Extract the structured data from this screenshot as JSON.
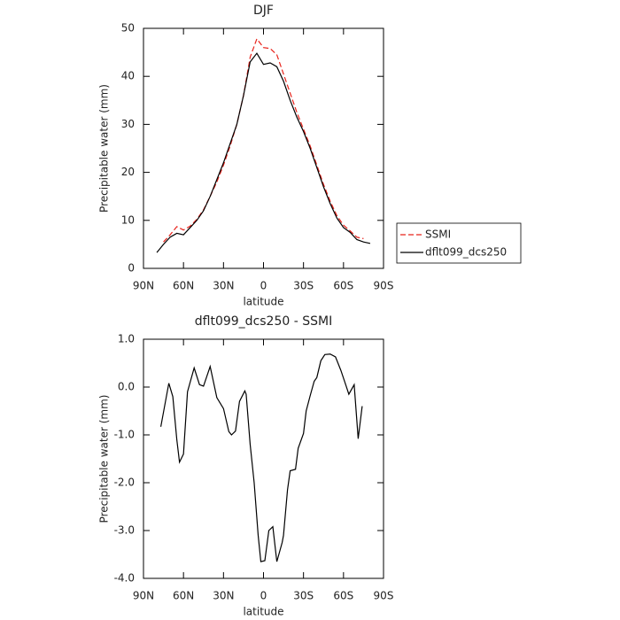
{
  "chart_data": [
    {
      "type": "line",
      "title": "DJF",
      "xlabel": "latitude",
      "ylabel": "Precipitable water (mm)",
      "xlim": [
        90,
        -90
      ],
      "xticks": [
        {
          "value": 90,
          "label": "90N"
        },
        {
          "value": 60,
          "label": "60N"
        },
        {
          "value": 30,
          "label": "30N"
        },
        0,
        {
          "value": -30,
          "label": "30S"
        },
        {
          "value": -60,
          "label": "60S"
        },
        {
          "value": -90,
          "label": "90S"
        }
      ],
      "ylim": [
        0,
        50
      ],
      "yticks": [
        0,
        10,
        20,
        30,
        40,
        50
      ],
      "legend": "right",
      "x": [
        80,
        75,
        70,
        65,
        60,
        55,
        50,
        45,
        40,
        35,
        30,
        25,
        20,
        15,
        10,
        5,
        0,
        -5,
        -10,
        -15,
        -20,
        -25,
        -30,
        -35,
        -40,
        -45,
        -50,
        -55,
        -60,
        -65,
        -70,
        -75,
        -80
      ],
      "series": [
        {
          "name": "SSMI",
          "color": "#e8231b",
          "dashed": true,
          "values": [
            null,
            5.5,
            7,
            8.7,
            8,
            8.8,
            10.2,
            12.2,
            15,
            18,
            21.5,
            25.5,
            30,
            36,
            44,
            47.8,
            46,
            45.8,
            44.5,
            40.5,
            36.5,
            32.5,
            29,
            25.5,
            21.5,
            17.5,
            14,
            11,
            9,
            7.8,
            6.5,
            6.2,
            null
          ]
        },
        {
          "name": "dflt099_dcs250",
          "color": "#000000",
          "dashed": false,
          "values": [
            3.3,
            5,
            6.5,
            7.3,
            7,
            8.5,
            10,
            12,
            15,
            18.5,
            22,
            26,
            30,
            36,
            43,
            44.8,
            42.5,
            42.8,
            42,
            39,
            35,
            31.5,
            28.5,
            25,
            21,
            17,
            13.5,
            10.5,
            8.5,
            7.5,
            6,
            5.5,
            5.2
          ]
        }
      ]
    },
    {
      "type": "line",
      "title": "dflt099_dcs250 - SSMI",
      "xlabel": "latitude",
      "ylabel": "Precipitable water (mm)",
      "xlim": [
        90,
        -90
      ],
      "xticks": [
        {
          "value": 90,
          "label": "90N"
        },
        {
          "value": 60,
          "label": "60N"
        },
        {
          "value": 30,
          "label": "30N"
        },
        0,
        {
          "value": -30,
          "label": "30S"
        },
        {
          "value": -60,
          "label": "60S"
        },
        {
          "value": -90,
          "label": "90S"
        }
      ],
      "ylim": [
        -4,
        1
      ],
      "yticks": [
        {
          "value": -4,
          "label": "-4.0"
        },
        {
          "value": -3,
          "label": "-3.0"
        },
        {
          "value": -2,
          "label": "-2.0"
        },
        {
          "value": -1,
          "label": "-1.0"
        },
        {
          "value": 0,
          "label": "0.0"
        },
        {
          "value": 1,
          "label": "1.0"
        }
      ],
      "x": [
        77,
        71,
        68,
        65,
        63,
        60,
        57,
        52,
        48,
        45,
        44,
        40,
        35,
        30,
        26,
        24,
        21,
        18,
        14,
        13,
        10,
        7,
        4,
        2,
        -1,
        -4,
        -7,
        -10,
        -14,
        -15,
        -18,
        -20,
        -24,
        -26,
        -30,
        -32,
        -35,
        -38,
        -40,
        -43,
        -46,
        -50,
        -54,
        -58,
        -62,
        -64,
        -68,
        -71,
        -74
      ],
      "color": "#000000",
      "values": [
        -0.83,
        0.08,
        -0.2,
        -1.1,
        -1.57,
        -1.4,
        -0.1,
        0.4,
        0.05,
        0.02,
        0.1,
        0.43,
        -0.22,
        -0.45,
        -0.93,
        -1.0,
        -0.92,
        -0.3,
        -0.08,
        -0.15,
        -1.2,
        -2.0,
        -3.1,
        -3.65,
        -3.63,
        -3.0,
        -2.92,
        -3.65,
        -3.25,
        -3.1,
        -2.15,
        -1.75,
        -1.72,
        -1.28,
        -0.97,
        -0.5,
        -0.18,
        0.12,
        0.2,
        0.55,
        0.68,
        0.69,
        0.63,
        0.35,
        0.02,
        -0.15,
        0.05,
        -1.08,
        -0.4
      ]
    }
  ]
}
